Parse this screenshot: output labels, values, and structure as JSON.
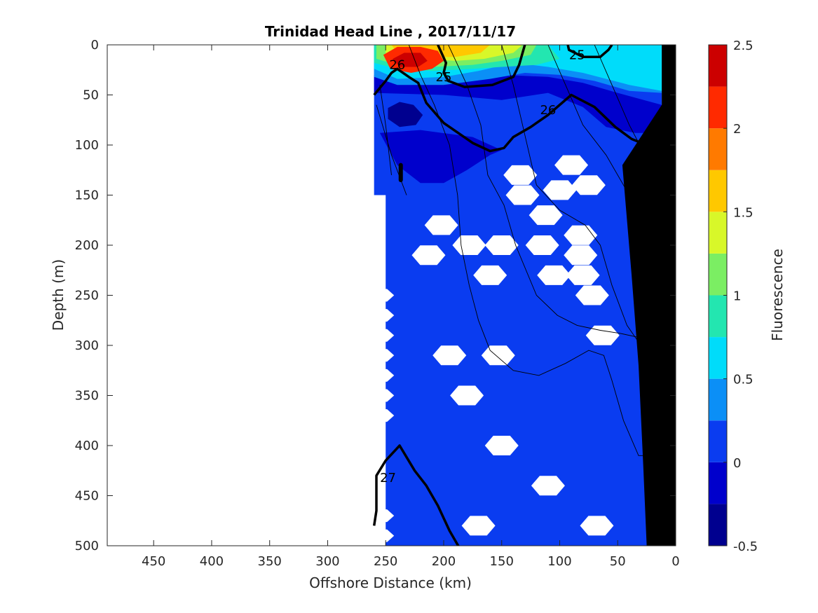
{
  "chart_data": {
    "type": "heatmap",
    "title": "Trinidad Head Line , 2017/11/17",
    "xlabel": "Offshore Distance (km)",
    "ylabel": "Depth (m)",
    "xlim": [
      490,
      0
    ],
    "ylim": [
      500,
      0
    ],
    "x_reversed": true,
    "y_reversed": true,
    "xticks": [
      450,
      400,
      350,
      300,
      250,
      200,
      150,
      100,
      50,
      0
    ],
    "yticks": [
      0,
      50,
      100,
      150,
      200,
      250,
      300,
      350,
      400,
      450,
      500
    ],
    "colorbar": {
      "label": "Fluorescence",
      "range": [
        -0.5,
        2.5
      ],
      "ticks": [
        2.5,
        2,
        1.5,
        1,
        0.5,
        0,
        -0.5
      ],
      "levels": [
        {
          "from": -0.5,
          "to": -0.25,
          "color": "#00008f"
        },
        {
          "from": -0.25,
          "to": 0,
          "color": "#0000cc"
        },
        {
          "from": 0,
          "to": 0.25,
          "color": "#0a3cf0"
        },
        {
          "from": 0.25,
          "to": 0.5,
          "color": "#0b8ff6"
        },
        {
          "from": 0.5,
          "to": 0.75,
          "color": "#00dcfa"
        },
        {
          "from": 0.75,
          "to": 1,
          "color": "#23e6b0"
        },
        {
          "from": 1,
          "to": 1.25,
          "color": "#7bee63"
        },
        {
          "from": 1.25,
          "to": 1.5,
          "color": "#d8f729"
        },
        {
          "from": 1.5,
          "to": 1.75,
          "color": "#ffc800"
        },
        {
          "from": 1.75,
          "to": 2,
          "color": "#ff7a00"
        },
        {
          "from": 2,
          "to": 2.25,
          "color": "#ff2a00"
        },
        {
          "from": 2.25,
          "to": 2.5,
          "color": "#cc0000"
        }
      ]
    },
    "field": {
      "background_value": 0.1,
      "data_x_range": [
        260,
        12
      ],
      "bottom_data_x_start": 250,
      "patches": [
        {
          "value": -0.1,
          "points": [
            [
              260,
              48
            ],
            [
              200,
              50
            ],
            [
              150,
              55
            ],
            [
              110,
              48
            ],
            [
              80,
              62
            ],
            [
              60,
              82
            ],
            [
              35,
              88
            ],
            [
              12,
              88
            ],
            [
              12,
              60
            ],
            [
              50,
              48
            ],
            [
              80,
              38
            ],
            [
              110,
              32
            ],
            [
              150,
              30
            ],
            [
              200,
              25
            ],
            [
              260,
              30
            ]
          ]
        },
        {
          "value": -0.1,
          "points": [
            [
              255,
              88
            ],
            [
              240,
              120
            ],
            [
              220,
              138
            ],
            [
              200,
              138
            ],
            [
              180,
              125
            ],
            [
              160,
              110
            ],
            [
              150,
              105
            ],
            [
              175,
              92
            ],
            [
              220,
              85
            ]
          ]
        },
        {
          "value": -0.4,
          "points": [
            [
              248,
              63
            ],
            [
              238,
              57
            ],
            [
              226,
              60
            ],
            [
              218,
              70
            ],
            [
              224,
              80
            ],
            [
              238,
              82
            ],
            [
              248,
              74
            ]
          ]
        },
        {
          "value": 0.4,
          "points": [
            [
              260,
              0
            ],
            [
              12,
              0
            ],
            [
              12,
              48
            ],
            [
              40,
              46
            ],
            [
              70,
              36
            ],
            [
              100,
              30
            ],
            [
              130,
              28
            ],
            [
              160,
              34
            ],
            [
              200,
              40
            ],
            [
              240,
              40
            ],
            [
              260,
              32
            ]
          ]
        },
        {
          "value": 0.6,
          "points": [
            [
              260,
              0
            ],
            [
              12,
              0
            ],
            [
              12,
              46
            ],
            [
              40,
              40
            ],
            [
              80,
              28
            ],
            [
              110,
              22
            ],
            [
              140,
              18
            ],
            [
              170,
              26
            ],
            [
              200,
              32
            ],
            [
              240,
              34
            ],
            [
              260,
              24
            ]
          ]
        },
        {
          "value": 0.9,
          "points": [
            [
              260,
              0
            ],
            [
              110,
              0
            ],
            [
              100,
              14
            ],
            [
              120,
              20
            ],
            [
              150,
              22
            ],
            [
              175,
              24
            ],
            [
              210,
              26
            ],
            [
              240,
              24
            ],
            [
              260,
              18
            ]
          ]
        },
        {
          "value": 1.1,
          "points": [
            [
              258,
              0
            ],
            [
              120,
              0
            ],
            [
              125,
              10
            ],
            [
              150,
              16
            ],
            [
              175,
              20
            ],
            [
              210,
              22
            ],
            [
              240,
              20
            ],
            [
              258,
              14
            ]
          ]
        },
        {
          "value": 1.3,
          "points": [
            [
              250,
              0
            ],
            [
              132,
              0
            ],
            [
              140,
              8
            ],
            [
              165,
              14
            ],
            [
              190,
              16
            ],
            [
              220,
              14
            ],
            [
              250,
              10
            ]
          ]
        },
        {
          "value": 1.6,
          "points": [
            [
              245,
              0
            ],
            [
              160,
              0
            ],
            [
              168,
              8
            ],
            [
              190,
              12
            ],
            [
              215,
              12
            ],
            [
              240,
              8
            ]
          ]
        },
        {
          "value": 2.1,
          "points": [
            [
              252,
              10
            ],
            [
              240,
              2
            ],
            [
              220,
              2
            ],
            [
              205,
              6
            ],
            [
              200,
              16
            ],
            [
              210,
              24
            ],
            [
              228,
              28
            ],
            [
              246,
              24
            ]
          ]
        },
        {
          "value": 2.4,
          "points": [
            [
              244,
              14
            ],
            [
              234,
              8
            ],
            [
              220,
              8
            ],
            [
              214,
              16
            ],
            [
              222,
              22
            ],
            [
              238,
              22
            ]
          ]
        }
      ],
      "gaps": [
        {
          "x": 134,
          "y": 130
        },
        {
          "x": 90,
          "y": 120
        },
        {
          "x": 100,
          "y": 145
        },
        {
          "x": 132,
          "y": 150
        },
        {
          "x": 75,
          "y": 140
        },
        {
          "x": 112,
          "y": 170
        },
        {
          "x": 202,
          "y": 180
        },
        {
          "x": 82,
          "y": 190
        },
        {
          "x": 213,
          "y": 210
        },
        {
          "x": 178,
          "y": 200
        },
        {
          "x": 150,
          "y": 200
        },
        {
          "x": 115,
          "y": 200
        },
        {
          "x": 82,
          "y": 210
        },
        {
          "x": 160,
          "y": 230
        },
        {
          "x": 105,
          "y": 230
        },
        {
          "x": 80,
          "y": 230
        },
        {
          "x": 72,
          "y": 250
        },
        {
          "x": 63,
          "y": 290
        },
        {
          "x": 195,
          "y": 310
        },
        {
          "x": 153,
          "y": 310
        },
        {
          "x": 180,
          "y": 350
        },
        {
          "x": 150,
          "y": 400
        },
        {
          "x": 110,
          "y": 440
        },
        {
          "x": 170,
          "y": 480
        },
        {
          "x": 68,
          "y": 480
        }
      ]
    },
    "left_edge_notches": [
      250,
      270,
      290,
      310,
      330,
      350,
      370,
      470,
      490
    ],
    "contours_bold": [
      {
        "level": "26",
        "points": [
          [
            260,
            50
          ],
          [
            250,
            36
          ],
          [
            245,
            28
          ],
          [
            240,
            24
          ],
          [
            230,
            32
          ],
          [
            222,
            38
          ],
          [
            215,
            58
          ],
          [
            200,
            78
          ],
          [
            175,
            98
          ],
          [
            160,
            106
          ],
          [
            148,
            103
          ],
          [
            140,
            92
          ],
          [
            125,
            82
          ],
          [
            110,
            70
          ],
          [
            90,
            50
          ],
          [
            70,
            62
          ],
          [
            52,
            82
          ],
          [
            38,
            94
          ],
          [
            25,
            100
          ],
          [
            12,
            100
          ]
        ]
      },
      {
        "level": "25",
        "points": [
          [
            205,
            0
          ],
          [
            198,
            18
          ],
          [
            200,
            28
          ],
          [
            196,
            36
          ],
          [
            182,
            42
          ],
          [
            158,
            40
          ],
          [
            140,
            32
          ],
          [
            135,
            20
          ],
          [
            130,
            0
          ]
        ]
      },
      {
        "level": "25",
        "points": [
          [
            93,
            0
          ],
          [
            92,
            5
          ],
          [
            80,
            12
          ],
          [
            65,
            12
          ],
          [
            58,
            5
          ],
          [
            55,
            0
          ]
        ]
      },
      {
        "level": "27",
        "points": [
          [
            185,
            505
          ],
          [
            195,
            485
          ],
          [
            205,
            460
          ],
          [
            215,
            440
          ],
          [
            225,
            425
          ],
          [
            238,
            400
          ],
          [
            250,
            415
          ],
          [
            258,
            430
          ],
          [
            258,
            465
          ],
          [
            260,
            480
          ]
        ]
      }
    ],
    "contours_thin": [
      [
        [
          258,
          60
        ],
        [
          245,
          110
        ],
        [
          232,
          150
        ]
      ],
      [
        [
          230,
          0
        ],
        [
          220,
          30
        ],
        [
          208,
          60
        ],
        [
          195,
          100
        ],
        [
          188,
          150
        ],
        [
          185,
          200
        ],
        [
          178,
          240
        ],
        [
          170,
          275
        ],
        [
          160,
          305
        ],
        [
          140,
          325
        ],
        [
          118,
          330
        ],
        [
          95,
          318
        ],
        [
          75,
          305
        ],
        [
          62,
          310
        ],
        [
          55,
          335
        ],
        [
          45,
          375
        ],
        [
          32,
          410
        ],
        [
          18,
          410
        ]
      ],
      [
        [
          196,
          0
        ],
        [
          180,
          40
        ],
        [
          168,
          80
        ],
        [
          162,
          130
        ],
        [
          148,
          160
        ],
        [
          138,
          200
        ],
        [
          120,
          250
        ],
        [
          102,
          270
        ],
        [
          85,
          280
        ],
        [
          65,
          285
        ],
        [
          48,
          288
        ],
        [
          32,
          292
        ],
        [
          20,
          295
        ]
      ],
      [
        [
          150,
          0
        ],
        [
          140,
          40
        ],
        [
          130,
          90
        ],
        [
          120,
          140
        ],
        [
          100,
          165
        ],
        [
          78,
          180
        ],
        [
          65,
          200
        ],
        [
          55,
          240
        ],
        [
          42,
          280
        ],
        [
          30,
          300
        ]
      ],
      [
        [
          110,
          0
        ],
        [
          95,
          40
        ],
        [
          80,
          80
        ],
        [
          60,
          110
        ],
        [
          40,
          150
        ],
        [
          25,
          190
        ],
        [
          12,
          210
        ]
      ],
      [
        [
          70,
          0
        ],
        [
          55,
          40
        ],
        [
          40,
          80
        ],
        [
          22,
          120
        ],
        [
          12,
          140
        ]
      ],
      [
        [
          255,
          40
        ],
        [
          250,
          80
        ],
        [
          245,
          130
        ]
      ]
    ],
    "contour_labels": [
      {
        "text": "26",
        "x": 240,
        "y": 20
      },
      {
        "text": "25",
        "x": 200,
        "y": 32
      },
      {
        "text": "26",
        "x": 110,
        "y": 65
      },
      {
        "text": "25",
        "x": 85,
        "y": 10
      },
      {
        "text": "27",
        "x": 248,
        "y": 432
      }
    ],
    "black_mark": {
      "x": 237,
      "y1": 120,
      "y2": 135
    },
    "bottom_topography": {
      "points": [
        [
          0,
          0
        ],
        [
          0,
          500
        ],
        [
          25,
          500
        ],
        [
          28,
          420
        ],
        [
          32,
          320
        ],
        [
          38,
          230
        ],
        [
          46,
          120
        ],
        [
          12,
          60
        ],
        [
          12,
          0
        ]
      ]
    }
  }
}
